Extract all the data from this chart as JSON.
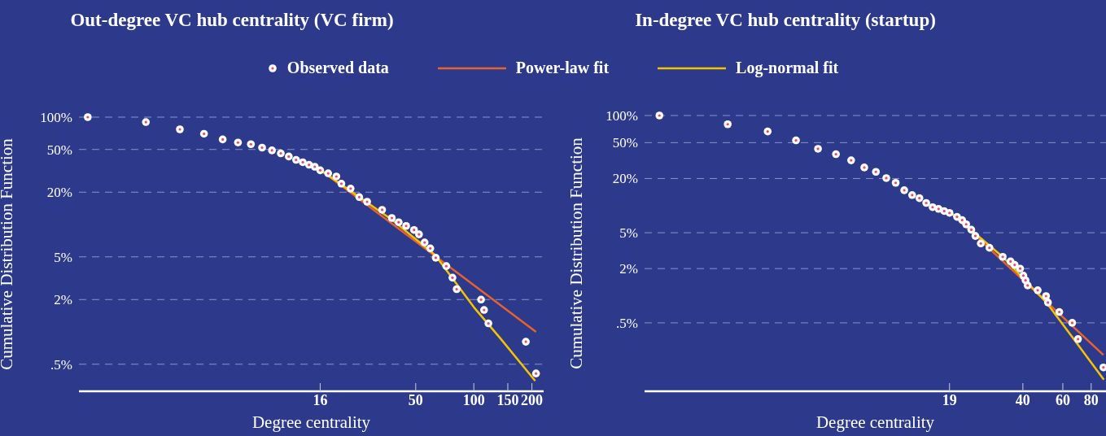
{
  "chart_data": [
    {
      "type": "scatter",
      "title": "Out-degree VC hub centrality (VC firm)",
      "xlabel": "Degree centrality",
      "ylabel": "Cumulative Distribution Function",
      "log": "xy",
      "grid": "y",
      "legend": "top",
      "xlim": [
        0.9,
        230
      ],
      "xticks": [
        16,
        50,
        100,
        150,
        200
      ],
      "ylim": [
        0.28,
        100
      ],
      "yticks": [
        {
          "value": 100,
          "label": "100%"
        },
        {
          "value": 50,
          "label": "50%"
        },
        {
          "value": 20,
          "label": "20%"
        },
        {
          "value": 5,
          "label": "5%"
        },
        {
          "value": 2,
          "label": "2%"
        },
        {
          "value": 0.5,
          "label": ".5%"
        }
      ],
      "series": [
        {
          "name": "Observed data",
          "marker": "circle",
          "color": "#ffffff",
          "x": [
            1,
            2,
            3,
            4,
            5,
            6,
            7,
            8,
            9,
            10,
            11,
            12,
            13,
            14,
            15,
            16,
            17.6,
            19.4,
            20.6,
            23,
            25.5,
            28,
            33.5,
            37.6,
            40.8,
            44.6,
            49,
            52,
            55.6,
            59.5,
            63.5,
            72,
            77.5,
            81.5,
            109,
            113,
            119,
            186,
            210
          ],
          "values": [
            100,
            90,
            77,
            70,
            62,
            58,
            56,
            52,
            49,
            46,
            43,
            40,
            38,
            36,
            34.5,
            32,
            30,
            28,
            24,
            21.6,
            18,
            16.3,
            13.7,
            11.5,
            10.5,
            9.7,
            8.9,
            8.1,
            6.8,
            6,
            4.9,
            4.1,
            3.2,
            2.5,
            2,
            1.6,
            1.2,
            0.81,
            0.41
          ]
        },
        {
          "name": "Power-law fit",
          "type": "line",
          "color": "#e8622c",
          "x": [
            16.1,
            210
          ],
          "values": [
            32.1,
            1
          ]
        },
        {
          "name": "Log-normal fit",
          "type": "line",
          "color": "#f5c400",
          "x": [
            16.1,
            23,
            37.6,
            63,
            100,
            138,
            208
          ],
          "values": [
            32.1,
            20.5,
            11.1,
            5.2,
            1.7,
            0.86,
            0.35
          ]
        }
      ]
    },
    {
      "type": "scatter",
      "title": "In-degree VC hub centrality (startup)",
      "xlabel": "Degree centrality",
      "ylabel": "Cumulative Distribution Function",
      "log": "xy",
      "grid": "y",
      "xlim": [
        0.86,
        93
      ],
      "xticks": [
        19,
        40,
        60,
        80
      ],
      "ylim": [
        0.087,
        100
      ],
      "yticks": [
        {
          "value": 100,
          "label": "100%"
        },
        {
          "value": 50,
          "label": "50%"
        },
        {
          "value": 20,
          "label": "20%"
        },
        {
          "value": 5,
          "label": "5%"
        },
        {
          "value": 2,
          "label": "2%"
        },
        {
          "value": 0.5,
          "label": ".5%"
        }
      ],
      "series": [
        {
          "marker": "circle",
          "color": "#ffffff",
          "x": [
            1,
            2,
            3,
            4,
            5,
            6,
            7,
            8,
            9,
            10,
            11,
            12,
            13,
            14,
            15,
            16,
            17,
            18,
            19,
            20.5,
            21.6,
            22.5,
            23.7,
            24.7,
            26.1,
            28.5,
            32.6,
            35.3,
            36.8,
            38.9,
            40.2,
            41.1,
            42,
            46.5,
            50.6,
            51.6,
            57.9,
            66,
            70,
            90.6
          ],
          "values": [
            100,
            80,
            66.5,
            53,
            42.7,
            37.2,
            31.8,
            26.5,
            23.7,
            20.2,
            17.9,
            14.8,
            13.1,
            12.1,
            10.7,
            9.6,
            9.2,
            8.7,
            8.3,
            7.5,
            6.9,
            6.2,
            5.4,
            4.6,
            3.8,
            3.4,
            2.7,
            2.4,
            2.2,
            2,
            1.67,
            1.48,
            1.3,
            1.15,
            0.99,
            0.84,
            0.66,
            0.5,
            0.33,
            0.16
          ]
        },
        {
          "type": "line",
          "color": "#e8622c",
          "x": [
            19.3,
            90.6
          ],
          "values": [
            8.3,
            0.22
          ]
        },
        {
          "type": "line",
          "color": "#f5c400",
          "x": [
            19.3,
            32.6,
            50.6,
            66.5,
            91
          ],
          "values": [
            8.3,
            2.7,
            0.85,
            0.34,
            0.117
          ]
        }
      ]
    }
  ]
}
